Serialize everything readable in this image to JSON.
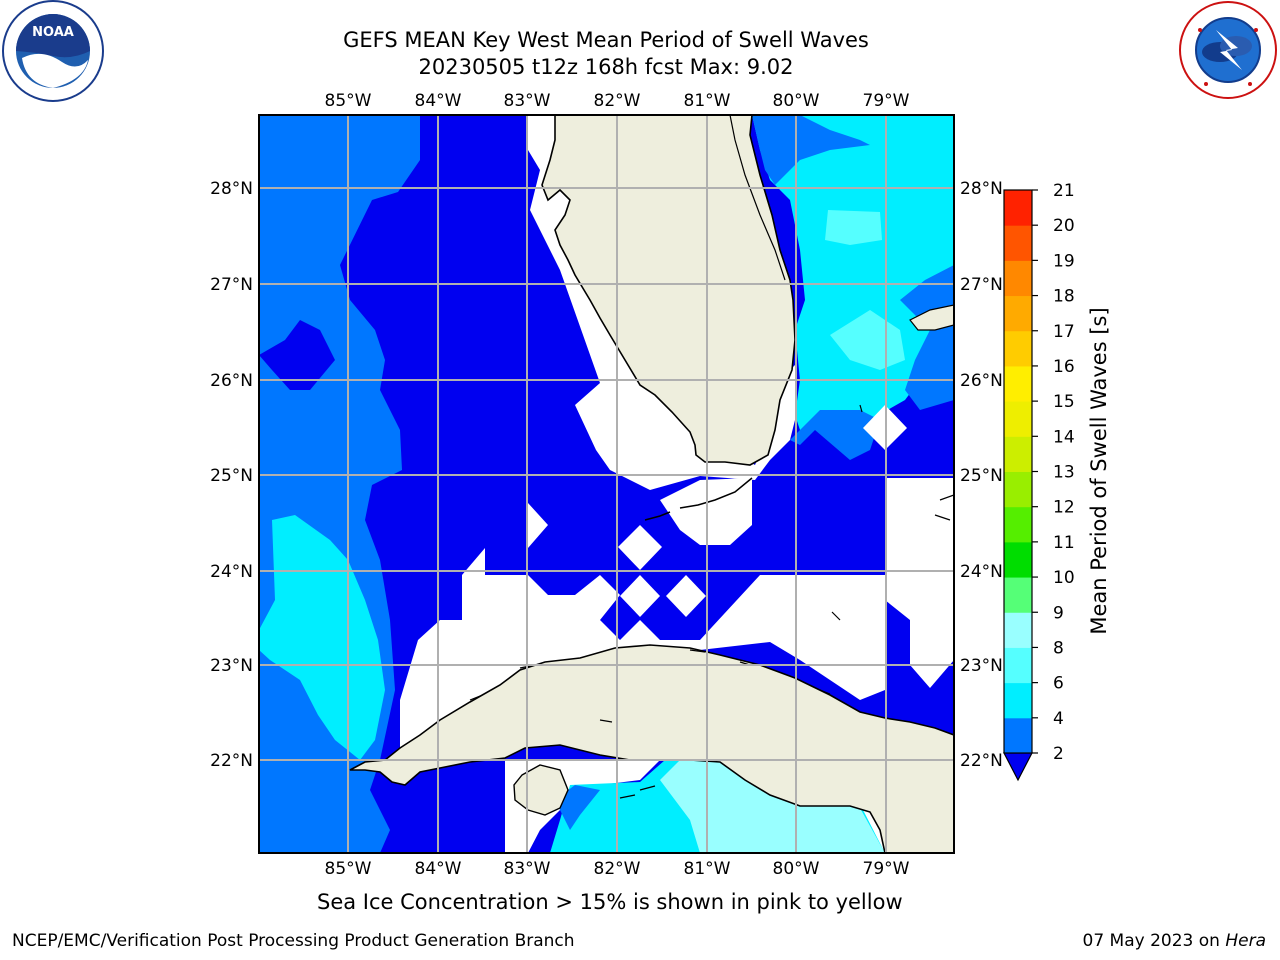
{
  "header": {
    "title_line1": "GEFS MEAN Key West Mean Period of Swell Waves",
    "title_line2": "20230505 t12z 168h fcst   Max: 9.02"
  },
  "logos": {
    "noaa": {
      "label": "NOAA",
      "ring_text": "NATIONAL OCEANIC AND ATMOSPHERIC ADMINISTRATION · U.S. DEPARTMENT OF COMMERCE"
    },
    "nws": {
      "ring_text": "NATIONAL WEATHER SERVICE"
    }
  },
  "map": {
    "lon_labels": [
      "85°W",
      "84°W",
      "83°W",
      "82°W",
      "81°W",
      "80°W",
      "79°W"
    ],
    "lat_labels": [
      "28°N",
      "27°N",
      "26°N",
      "25°N",
      "24°N",
      "23°N",
      "22°N"
    ],
    "colors": {
      "land": "#eeeedd",
      "deep": "#0000f0",
      "mid": "#0077ff",
      "cyan": "#00eeff",
      "lightcyan": "#55ffff",
      "pale": "#99ffff"
    }
  },
  "colorbar": {
    "label": "Mean Period of Swell Waves [s]",
    "ticks": [
      "2",
      "4",
      "6",
      "8",
      "9",
      "10",
      "11",
      "12",
      "13",
      "14",
      "15",
      "16",
      "17",
      "18",
      "19",
      "20",
      "21"
    ],
    "colors": [
      "#0077ff",
      "#00eeff",
      "#55ffff",
      "#99ffff",
      "#55ff77",
      "#00dd00",
      "#55ee00",
      "#99ee00",
      "#ccee00",
      "#eeee00",
      "#ffee00",
      "#ffcc00",
      "#ffaa00",
      "#ff8800",
      "#ff5500",
      "#ff2200"
    ],
    "extend_color": "#0000f0"
  },
  "note": "Sea Ice Concentration > 15% is shown in pink to yellow",
  "footer": {
    "left": "NCEP/EMC/Verification Post Processing Product Generation Branch",
    "right_prefix": "07 May 2023 on ",
    "right_host": "Hera"
  }
}
